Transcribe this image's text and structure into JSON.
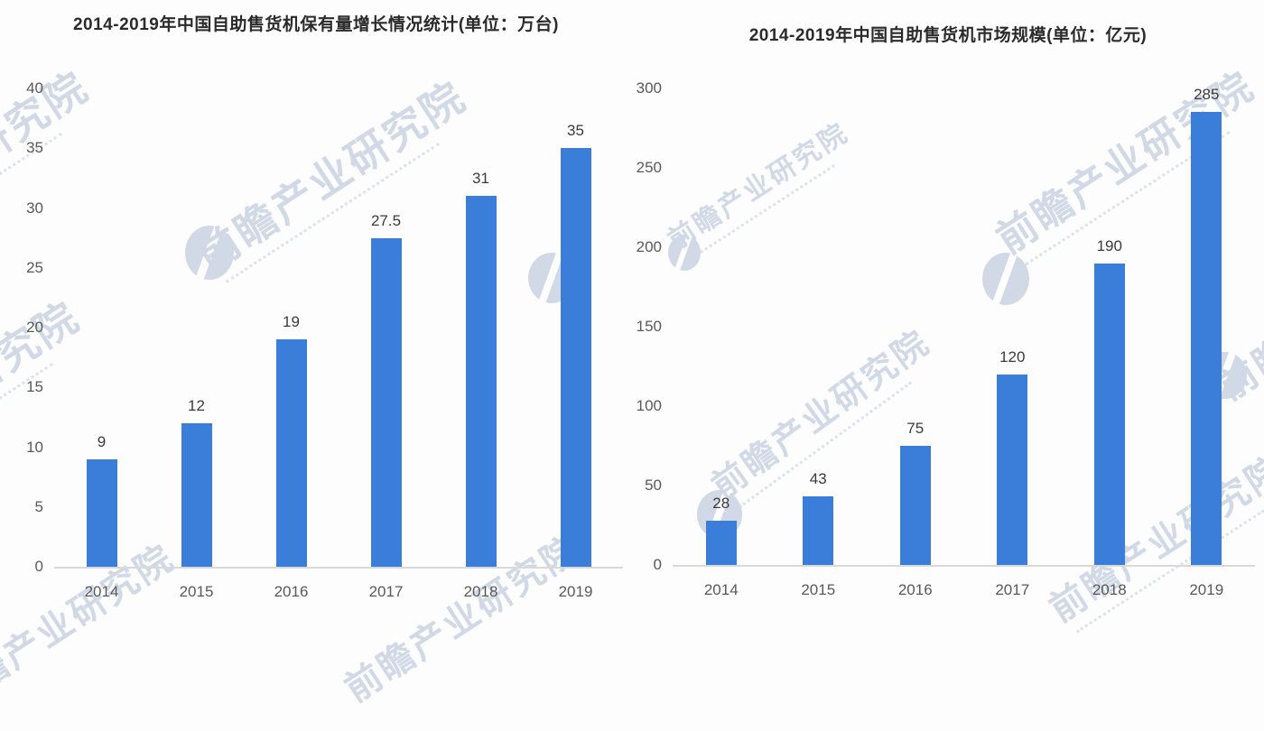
{
  "watermark": {
    "text": "前瞻产业研究院"
  },
  "colors": {
    "bar": "#3b7ed9",
    "title_text": "#2b2b2b",
    "axis_text": "#595959",
    "value_text": "#3a3a3a",
    "baseline": "#d9d9d9",
    "watermark": "#aebdd6"
  },
  "chart_data": [
    {
      "type": "bar",
      "title": "2014-2019年中国自助售货机保有量增长情况统计(单位：万台)",
      "categories": [
        "2014",
        "2015",
        "2016",
        "2017",
        "2018",
        "2019"
      ],
      "values": [
        9,
        12,
        19,
        27.5,
        31,
        35
      ],
      "data_labels": [
        "9",
        "12",
        "19",
        "27.5",
        "31",
        "35"
      ],
      "xlabel": "",
      "ylabel": "",
      "ylim": [
        0,
        40
      ],
      "y_ticks": [
        0,
        5,
        10,
        15,
        20,
        25,
        30,
        35,
        40
      ],
      "grid": false,
      "legend": "none"
    },
    {
      "type": "bar",
      "title": "2014-2019年中国自助售货机市场规模(单位：亿元)",
      "categories": [
        "2014",
        "2015",
        "2016",
        "2017",
        "2018",
        "2019"
      ],
      "values": [
        28,
        43,
        75,
        120,
        190,
        285
      ],
      "data_labels": [
        "28",
        "43",
        "75",
        "120",
        "190",
        "285"
      ],
      "xlabel": "",
      "ylabel": "",
      "ylim": [
        0,
        300
      ],
      "y_ticks": [
        0,
        50,
        100,
        150,
        200,
        250,
        300
      ],
      "grid": false,
      "legend": "none"
    }
  ]
}
